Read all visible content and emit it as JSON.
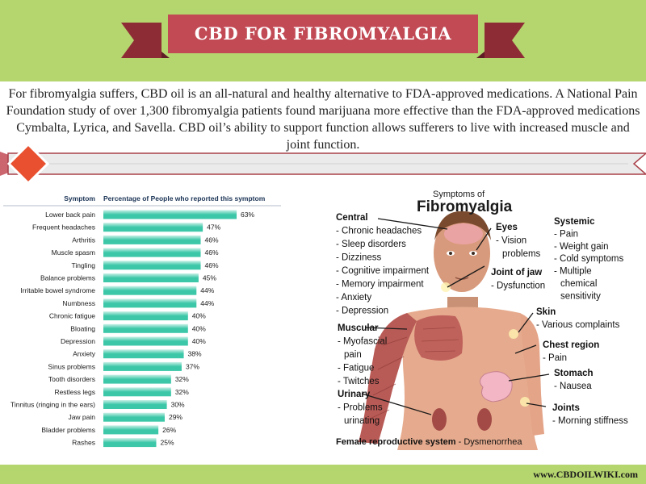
{
  "header": {
    "title": "CBD FOR FIBROMYALGIA",
    "band_color": "#b5d56f",
    "ribbon_color": "#c24a55",
    "ribbon_dark": "#8e2c36"
  },
  "intro": {
    "text": "For fibromyalgia suffers, CBD oil is an all-natural and healthy alternative to FDA-approved medications. A National Pain Foundation study of over 1,300 fibromyalgia patients found marijuana more effective than the FDA-approved medications Cymbalta, Lyrica, and Savella. CBD oil’s ability to support function allows sufferers to live with increased muscle and joint function."
  },
  "divider": {
    "diamond_color": "#e8502f",
    "arrow_color": "#c24a55"
  },
  "chart_data": {
    "type": "bar",
    "orientation": "horizontal",
    "header_symptom": "Symptom",
    "header_percent": "Percentage of People who reported this symptom",
    "categories": [
      "Lower back pain",
      "Frequent headaches",
      "Arthritis",
      "Muscle spasm",
      "Tingling",
      "Balance problems",
      "Irritable bowel syndrome",
      "Numbness",
      "Chronic fatigue",
      "Bloating",
      "Depression",
      "Anxiety",
      "Sinus problems",
      "Tooth disorders",
      "Restless legs",
      "Tinnitus (ringing in the ears)",
      "Jaw pain",
      "Bladder problems",
      "Rashes"
    ],
    "values": [
      63,
      47,
      46,
      46,
      46,
      45,
      44,
      44,
      40,
      40,
      40,
      38,
      37,
      32,
      32,
      30,
      29,
      26,
      25
    ],
    "labels": [
      "63%",
      "47%",
      "46%",
      "46%",
      "46%",
      "45%",
      "44%",
      "44%",
      "40%",
      "40%",
      "40%",
      "38%",
      "37%",
      "32%",
      "32%",
      "30%",
      "29%",
      "26%",
      "25%"
    ],
    "xlim": [
      0,
      100
    ],
    "bar_color": "#3cc7a8",
    "bar_color_light": "#c8f0e6"
  },
  "figure": {
    "title_line1": "Symptoms of",
    "title_line2": "Fibromyalgia",
    "groups": [
      {
        "heading": "Central",
        "items": [
          "- Chronic headaches",
          "- Sleep disorders",
          "- Dizziness",
          "- Cognitive impairment",
          "- Memory impairment",
          "- Anxiety",
          "- Depression"
        ]
      },
      {
        "heading": "Eyes",
        "items": [
          "- Vision",
          "problems"
        ]
      },
      {
        "heading": "Joint of jaw",
        "items": [
          "- Dysfunction"
        ]
      },
      {
        "heading": "Systemic",
        "items": [
          "- Pain",
          "- Weight gain",
          "- Cold symptoms",
          "- Multiple",
          "chemical",
          "sensitivity"
        ]
      },
      {
        "heading": "Skin",
        "items": [
          "- Various complaints"
        ]
      },
      {
        "heading": "Muscular",
        "items": [
          "- Myofascial",
          "pain",
          "- Fatigue",
          "- Twitches"
        ]
      },
      {
        "heading": "Chest region",
        "items": [
          "- Pain"
        ]
      },
      {
        "heading": "Stomach",
        "items": [
          "- Nausea"
        ]
      },
      {
        "heading": "Urinary",
        "items": [
          "- Problems",
          "urinating"
        ]
      },
      {
        "heading": "Joints",
        "items": [
          "- Morning stiffness"
        ]
      }
    ],
    "bottom_heading": "Female reproductive system",
    "bottom_text": " - Dysmenorrhea"
  },
  "footer": {
    "url": "www.CBDOILWIKI.com"
  }
}
